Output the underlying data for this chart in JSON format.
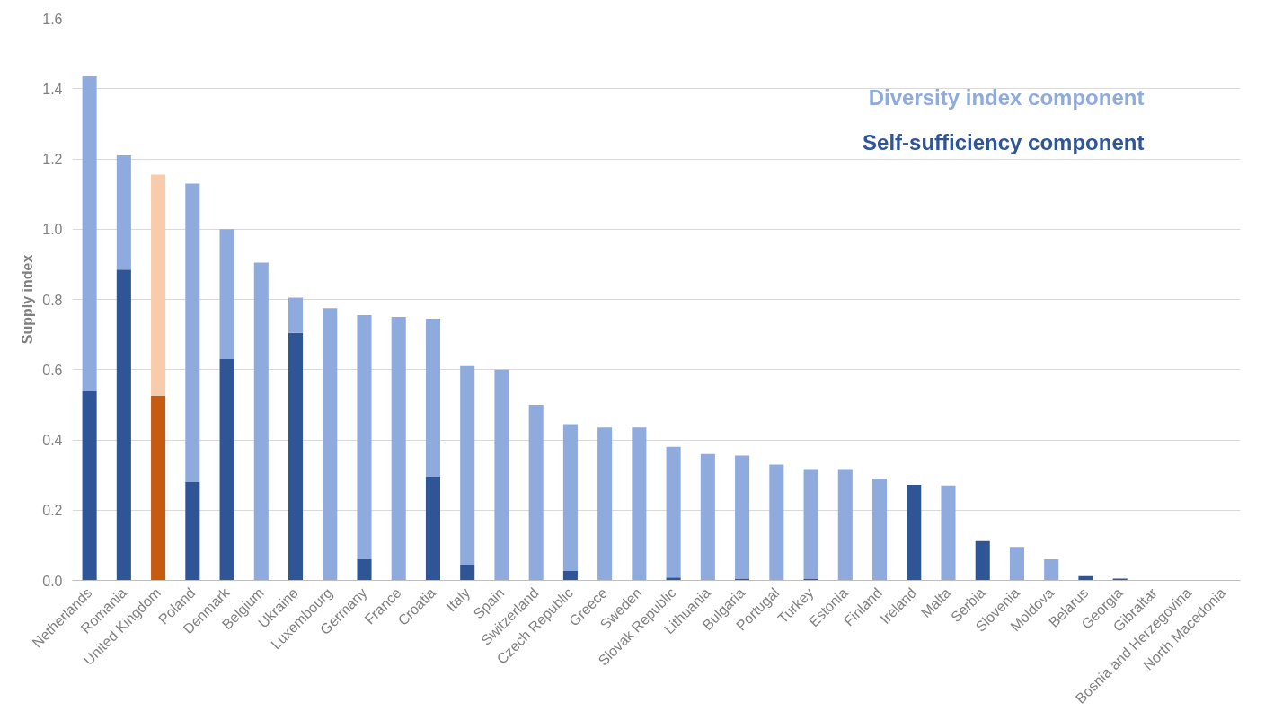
{
  "chart_data": {
    "type": "bar",
    "stacked": true,
    "ylabel": "Supply index",
    "categories": [
      "Netherlands",
      "Romania",
      "United Kingdom",
      "Poland",
      "Denmark",
      "Belgium",
      "Ukraine",
      "Luxembourg",
      "Germany",
      "France",
      "Croatia",
      "Italy",
      "Spain",
      "Switzerland",
      "Czech Republic",
      "Greece",
      "Sweden",
      "Slovak Republic",
      "Lithuania",
      "Bulgaria",
      "Portugal",
      "Turkey",
      "Estonia",
      "Finland",
      "Ireland",
      "Malta",
      "Serbia",
      "Slovenia",
      "Moldova",
      "Belarus",
      "Georgia",
      "Gibraltar",
      "Bosnia and Herzegovina",
      "North Macedonia"
    ],
    "series": [
      {
        "name": "Self-sufficiency component",
        "color": "#2f5597",
        "colors": [
          "#2f5597",
          "#2f5597",
          "#c55a11",
          "#2f5597",
          "#2f5597",
          "#2f5597",
          "#2f5597",
          "#2f5597",
          "#2f5597",
          "#2f5597",
          "#2f5597",
          "#2f5597",
          "#2f5597",
          "#2f5597",
          "#2f5597",
          "#2f5597",
          "#2f5597",
          "#2f5597",
          "#2f5597",
          "#2f5597",
          "#2f5597",
          "#2f5597",
          "#2f5597",
          "#2f5597",
          "#2f5597",
          "#2f5597",
          "#2f5597",
          "#2f5597",
          "#2f5597",
          "#2f5597",
          "#2f5597",
          "#2f5597",
          "#2f5597",
          "#2f5597"
        ],
        "values": [
          0.54,
          0.885,
          0.525,
          0.28,
          0.63,
          0,
          0.705,
          0,
          0.06,
          0,
          0.295,
          0.045,
          0,
          0,
          0.027,
          0,
          0,
          0.008,
          0,
          0.005,
          0,
          0.005,
          0,
          0,
          0.272,
          0,
          0.112,
          0,
          0,
          0.012,
          0.005,
          0,
          0,
          0
        ]
      },
      {
        "name": "Diversity index component",
        "color": "#8faadc",
        "colors": [
          "#8faadc",
          "#8faadc",
          "#f8cbad",
          "#8faadc",
          "#8faadc",
          "#8faadc",
          "#8faadc",
          "#8faadc",
          "#8faadc",
          "#8faadc",
          "#8faadc",
          "#8faadc",
          "#8faadc",
          "#8faadc",
          "#8faadc",
          "#8faadc",
          "#8faadc",
          "#8faadc",
          "#8faadc",
          "#8faadc",
          "#8faadc",
          "#8faadc",
          "#8faadc",
          "#8faadc",
          "#8faadc",
          "#8faadc",
          "#8faadc",
          "#8faadc",
          "#8faadc",
          "#8faadc",
          "#8faadc",
          "#8faadc",
          "#8faadc",
          "#8faadc"
        ],
        "values": [
          0.895,
          0.325,
          0.63,
          0.85,
          0.37,
          0.905,
          0.1,
          0.775,
          0.695,
          0.75,
          0.45,
          0.565,
          0.6,
          0.5,
          0.418,
          0.435,
          0.435,
          0.372,
          0.36,
          0.35,
          0.33,
          0.312,
          0.317,
          0.29,
          0,
          0.27,
          0,
          0.095,
          0.06,
          0,
          0,
          0,
          0,
          0
        ]
      }
    ],
    "ylim": [
      0,
      1.6
    ],
    "yticks": [
      {
        "value": 0,
        "label": "0.0"
      },
      {
        "value": 0.2,
        "label": "0.2"
      },
      {
        "value": 0.4,
        "label": "0.4"
      },
      {
        "value": 0.6,
        "label": "0.6"
      },
      {
        "value": 0.8,
        "label": "0.8"
      },
      {
        "value": 1.0,
        "label": "1.0"
      },
      {
        "value": 1.2,
        "label": "1.2"
      },
      {
        "value": 1.4,
        "label": "1.4"
      },
      {
        "value": 1.6,
        "label": "1.6"
      }
    ],
    "grid": "y"
  }
}
